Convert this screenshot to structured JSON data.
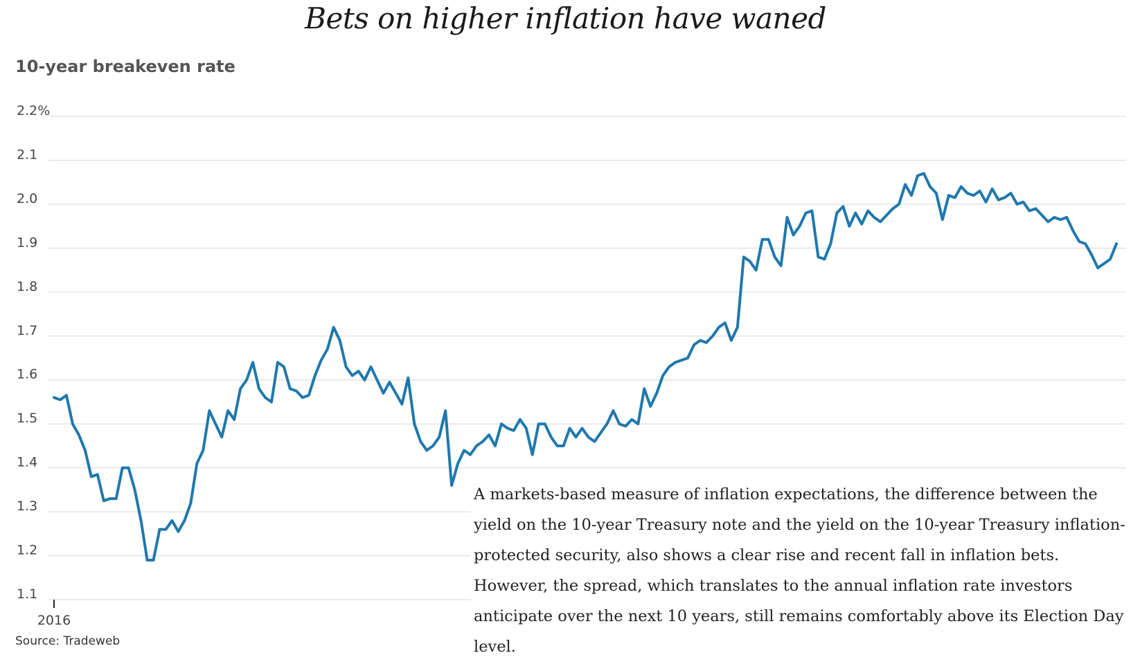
{
  "chart_data": {
    "type": "line",
    "title": "Bets on higher inflation have waned",
    "ylabel": "10-year breakeven rate",
    "xlabel": "",
    "source": "Source: Tradeweb",
    "annotation": "A markets-based measure of inflation expectations, the difference between the yield on the 10-year Treasury note and the yield on the 10-year Treasury inflation-protected security, also shows a clear rise and recent fall in inflation bets. However, the spread, which translates to the annual inflation rate investors anticipate over the next 10 years, still remains comfortably above its Election Day level.",
    "ylim": [
      1.1,
      2.2
    ],
    "y_ticks": [
      "2.2%",
      "2.1",
      "2.0",
      "1.9",
      "1.8",
      "1.7",
      "1.6",
      "1.5",
      "1.4",
      "1.3",
      "1.2",
      "1.1"
    ],
    "x_ticks": [
      "2016"
    ],
    "line_color": "#1f78ad",
    "grid": true,
    "series": [
      {
        "values": [
          1.56,
          1.555,
          1.565,
          1.5,
          1.475,
          1.44,
          1.38,
          1.385,
          1.325,
          1.33,
          1.33,
          1.4,
          1.4,
          1.35,
          1.28,
          1.19,
          1.19,
          1.26,
          1.26,
          1.28,
          1.255,
          1.28,
          1.32,
          1.41,
          1.44,
          1.53,
          1.5,
          1.47,
          1.53,
          1.51,
          1.58,
          1.6,
          1.64,
          1.58,
          1.56,
          1.55,
          1.64,
          1.63,
          1.58,
          1.575,
          1.56,
          1.565,
          1.61,
          1.645,
          1.67,
          1.72,
          1.69,
          1.63,
          1.61,
          1.62,
          1.6,
          1.63,
          1.6,
          1.57,
          1.595,
          1.57,
          1.545,
          1.605,
          1.5,
          1.46,
          1.44,
          1.45,
          1.47,
          1.53,
          1.36,
          1.41,
          1.44,
          1.43,
          1.45,
          1.46,
          1.475,
          1.45,
          1.5,
          1.49,
          1.485,
          1.51,
          1.49,
          1.43,
          1.5,
          1.5,
          1.47,
          1.45,
          1.45,
          1.49,
          1.47,
          1.49,
          1.47,
          1.46,
          1.48,
          1.5,
          1.53,
          1.5,
          1.495,
          1.51,
          1.5,
          1.58,
          1.54,
          1.57,
          1.61,
          1.63,
          1.64,
          1.645,
          1.65,
          1.68,
          1.69,
          1.685,
          1.7,
          1.72,
          1.73,
          1.69,
          1.72,
          1.88,
          1.87,
          1.85,
          1.92,
          1.92,
          1.88,
          1.86,
          1.97,
          1.93,
          1.95,
          1.98,
          1.985,
          1.88,
          1.875,
          1.91,
          1.98,
          1.995,
          1.95,
          1.98,
          1.955,
          1.985,
          1.97,
          1.96,
          1.975,
          1.99,
          2.0,
          2.045,
          2.02,
          2.065,
          2.07,
          2.04,
          2.025,
          1.965,
          2.02,
          2.015,
          2.04,
          2.025,
          2.02,
          2.03,
          2.005,
          2.035,
          2.01,
          2.015,
          2.025,
          2.0,
          2.005,
          1.985,
          1.99,
          1.975,
          1.96,
          1.97,
          1.965,
          1.97,
          1.94,
          1.915,
          1.91,
          1.885,
          1.855,
          1.865,
          1.875,
          1.91
        ]
      }
    ]
  }
}
